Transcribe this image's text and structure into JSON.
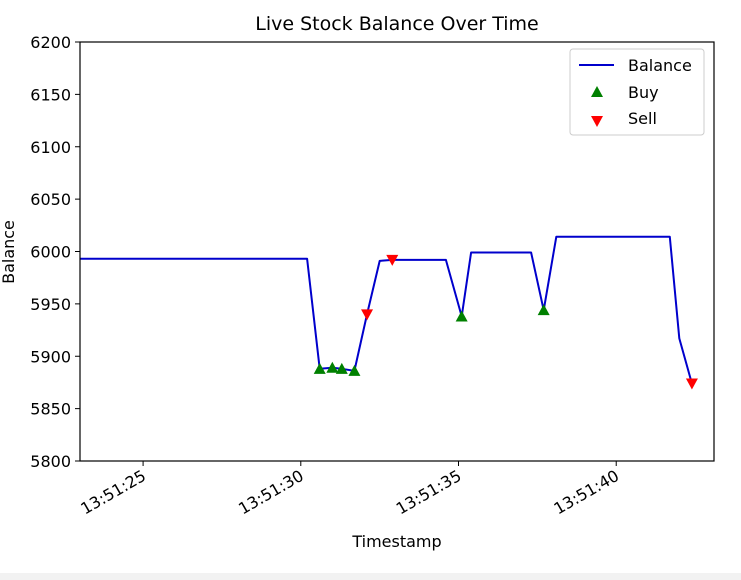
{
  "chart_data": {
    "type": "line",
    "title": "Live Stock Balance Over Time",
    "xlabel": "Timestamp",
    "ylabel": "Balance",
    "ylim": [
      5800,
      6200
    ],
    "xlim": [
      "13:51:23.0",
      "13:51:43.1"
    ],
    "x_ticks": [
      "13:51:25",
      "13:51:30",
      "13:51:35",
      "13:51:40"
    ],
    "y_ticks": [
      "5800",
      "5850",
      "5900",
      "5950",
      "6000",
      "6050",
      "6100",
      "6150",
      "6200"
    ],
    "legend": {
      "position": "top-right",
      "entries": [
        "Balance",
        "Buy",
        "Sell"
      ]
    },
    "colors": {
      "Balance": "#0000cc",
      "Buy": "#008000",
      "Sell": "#ff0000"
    },
    "series": [
      {
        "name": "Balance",
        "x": [
          "13:51:23.0",
          "13:51:30.2",
          "13:51:30.6",
          "13:51:31.0",
          "13:51:31.3",
          "13:51:31.7",
          "13:51:32.1",
          "13:51:32.5",
          "13:51:32.9",
          "13:51:34.6",
          "13:51:35.1",
          "13:51:35.4",
          "13:51:37.3",
          "13:51:37.7",
          "13:51:38.1",
          "13:51:41.7",
          "13:51:42.0",
          "13:51:42.4"
        ],
        "values": [
          5993,
          5993,
          5888,
          5889,
          5888,
          5886,
          5940,
          5991,
          5992,
          5992,
          5938,
          5999,
          5999,
          5944,
          6014,
          6014,
          5917,
          5874
        ]
      },
      {
        "name": "Buy",
        "x": [
          "13:51:30.6",
          "13:51:31.0",
          "13:51:31.3",
          "13:51:31.7",
          "13:51:35.1",
          "13:51:37.7"
        ],
        "values": [
          5888,
          5889,
          5888,
          5886,
          5938,
          5944
        ]
      },
      {
        "name": "Sell",
        "x": [
          "13:51:32.1",
          "13:51:32.9",
          "13:51:42.4"
        ],
        "values": [
          5940,
          5992,
          5874
        ]
      }
    ]
  }
}
